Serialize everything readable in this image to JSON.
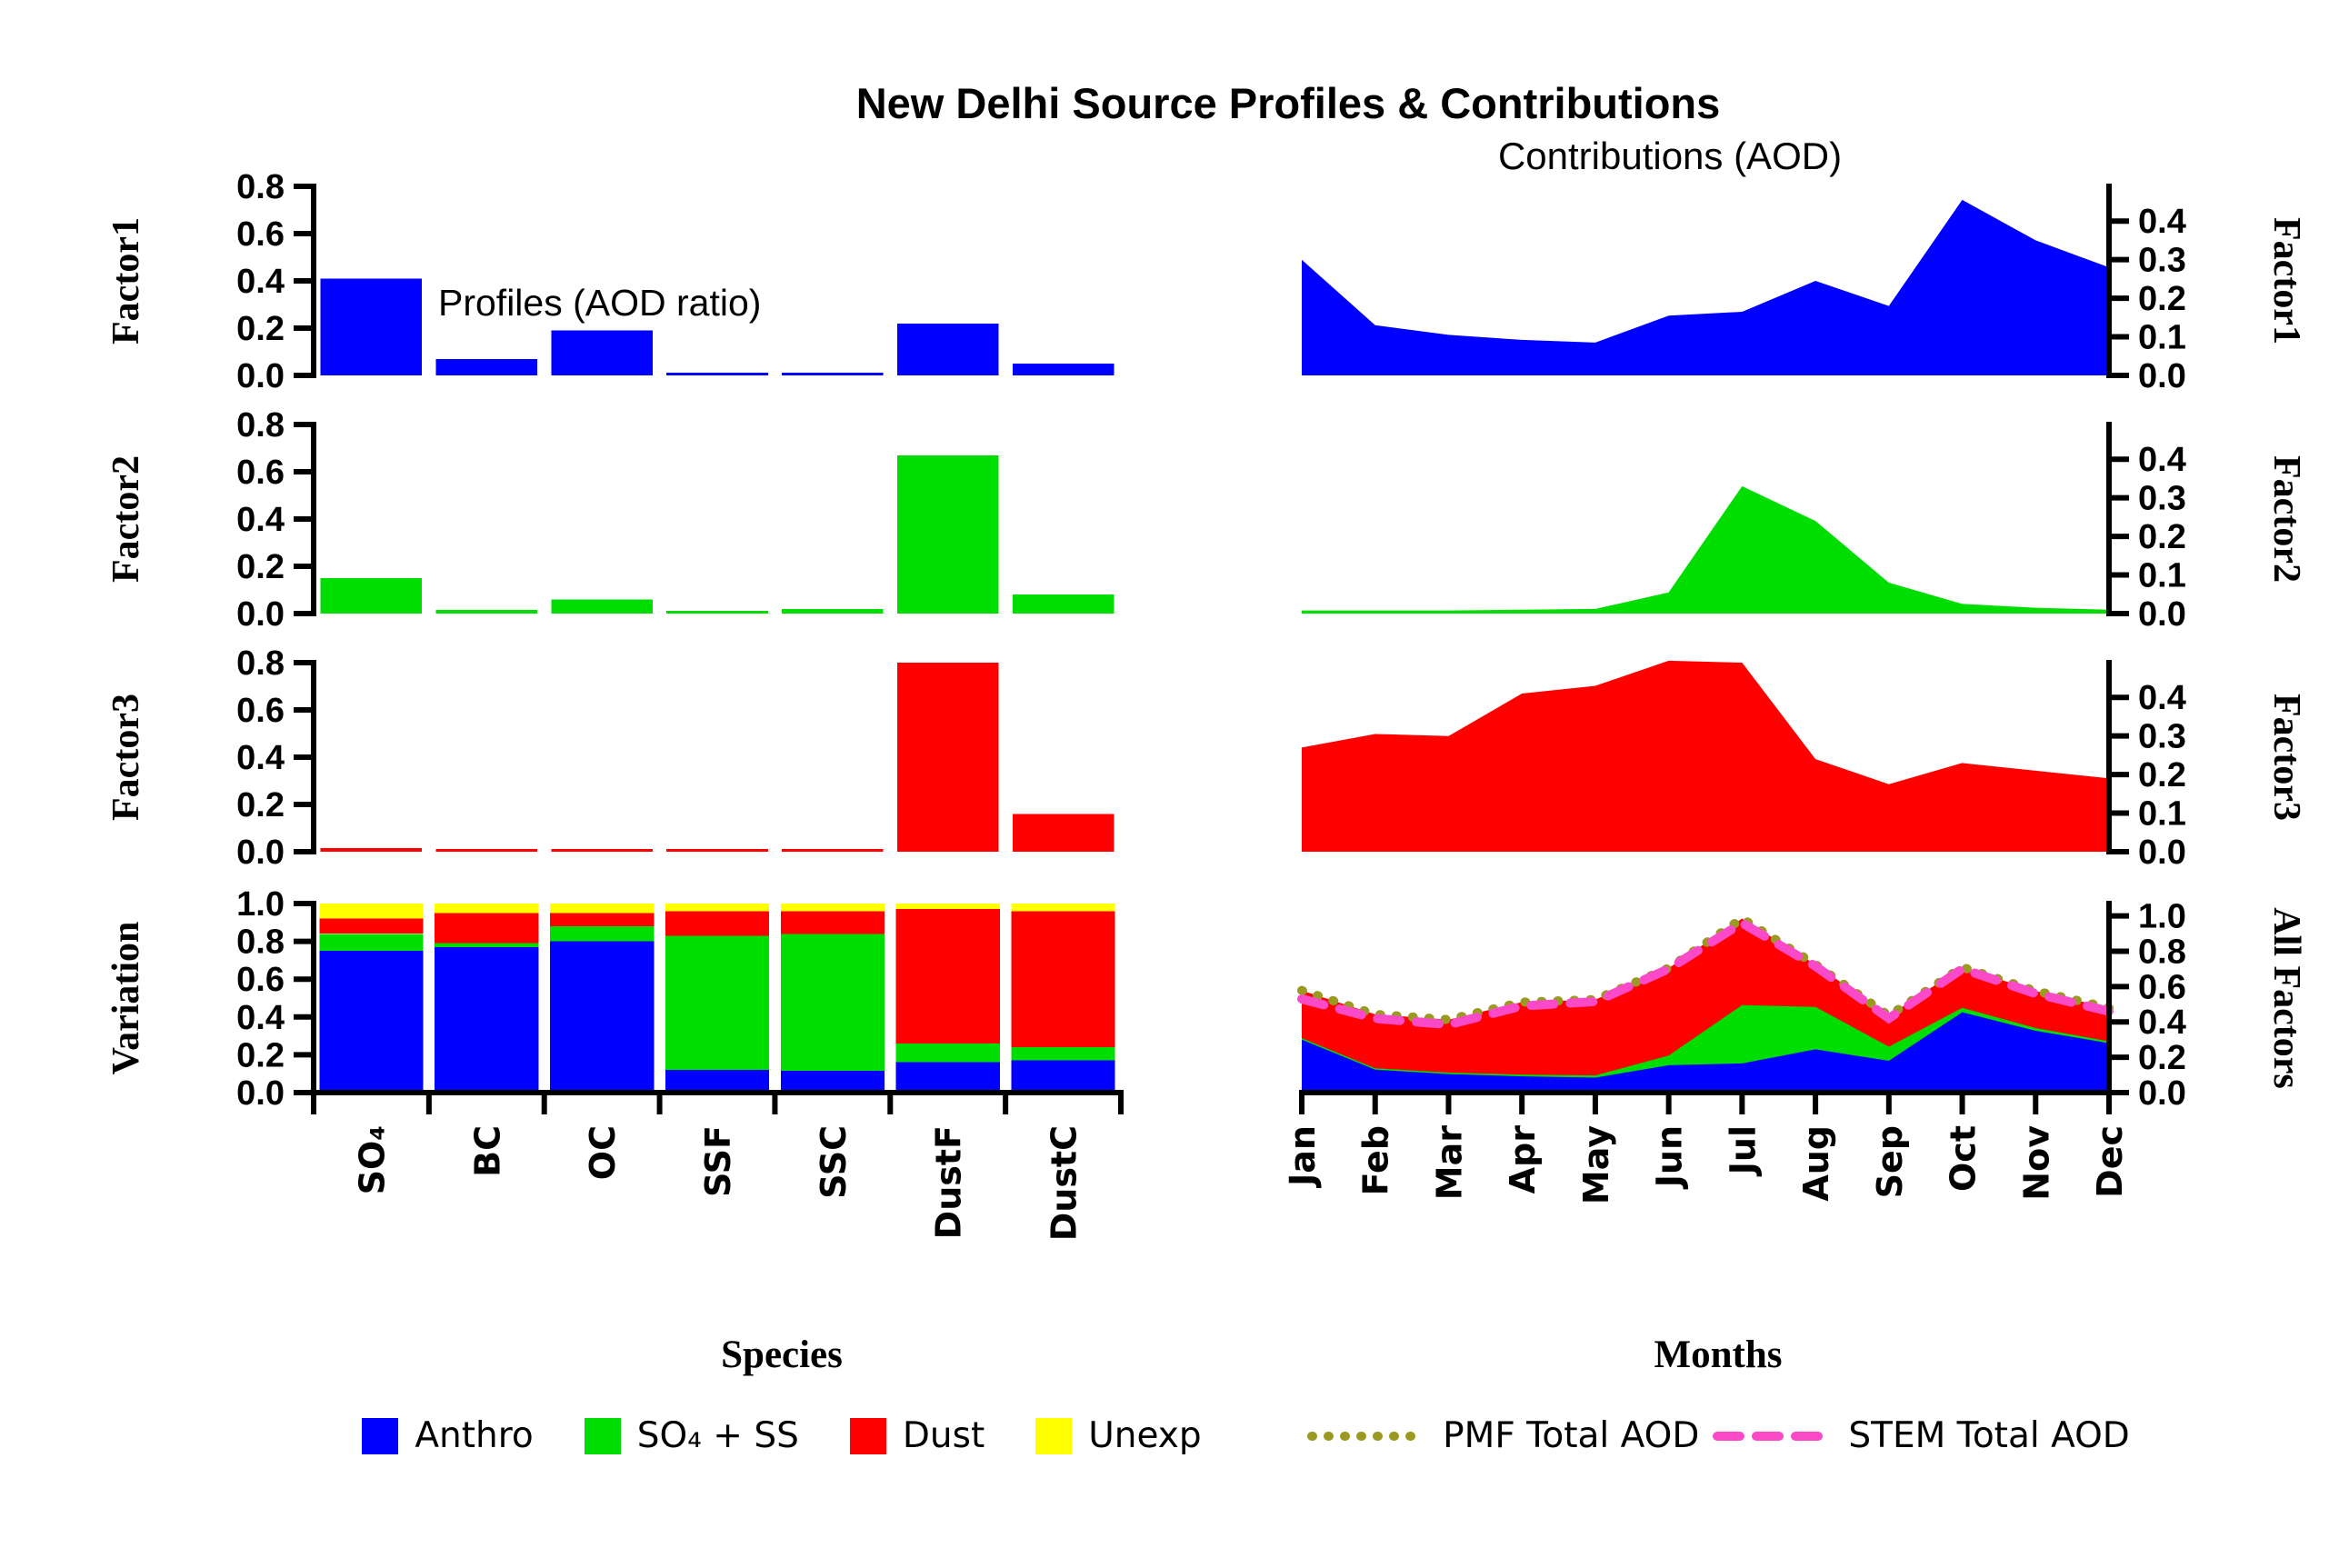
{
  "title": "New Delhi Source Profiles & Contributions",
  "subtitle_right": "Contributions (AOD)",
  "annotation_left": "Profiles (AOD ratio)",
  "species": [
    "SO₄",
    "BC",
    "OC",
    "SSF",
    "SSC",
    "DustF",
    "DustC"
  ],
  "months": [
    "Jan",
    "Feb",
    "Mar",
    "Apr",
    "May",
    "Jun",
    "Jul",
    "Aug",
    "Sep",
    "Oct",
    "Nov",
    "Dec"
  ],
  "colors": {
    "anthro": "#0000FF",
    "so4_ss": "#00DD00",
    "dust": "#FF0000",
    "unexp": "#FFFF00",
    "pmf_total": "#9A9A22",
    "stem_total": "#FA4AC8",
    "axis": "#000000"
  },
  "legends": {
    "species": {
      "title": "Species",
      "items": [
        {
          "label": "Anthro",
          "color": "#0000FF"
        },
        {
          "label": "SO₄ + SS",
          "color": "#00DD00"
        },
        {
          "label": "Dust",
          "color": "#FF0000"
        },
        {
          "label": "Unexp",
          "color": "#FFFF00"
        }
      ]
    },
    "months": {
      "title": "Months",
      "items": [
        {
          "label": "PMF Total AOD",
          "color": "#9A9A22",
          "style": "dotted"
        },
        {
          "label": "STEM Total AOD",
          "color": "#FA4AC8",
          "style": "dashed"
        }
      ]
    }
  },
  "chart_data": [
    {
      "name": "factor1-profile",
      "type": "bar",
      "col": "left",
      "row": 0,
      "axis_side": "left",
      "ylabel": "Factor1",
      "ylim": [
        0,
        0.8
      ],
      "yticks": [
        0,
        0.2,
        0.4,
        0.6,
        0.8
      ],
      "color": "#0000FF",
      "categories": [
        "SO₄",
        "BC",
        "OC",
        "SSF",
        "SSC",
        "DustF",
        "DustC"
      ],
      "values": [
        0.41,
        0.07,
        0.19,
        0.012,
        0.012,
        0.22,
        0.05
      ]
    },
    {
      "name": "factor2-profile",
      "type": "bar",
      "col": "left",
      "row": 1,
      "axis_side": "left",
      "ylabel": "Factor2",
      "ylim": [
        0,
        0.8
      ],
      "yticks": [
        0,
        0.2,
        0.4,
        0.6,
        0.8
      ],
      "color": "#00DD00",
      "categories": [
        "SO₄",
        "BC",
        "OC",
        "SSF",
        "SSC",
        "DustF",
        "DustC"
      ],
      "values": [
        0.15,
        0.015,
        0.06,
        0.012,
        0.02,
        0.67,
        0.08
      ]
    },
    {
      "name": "factor3-profile",
      "type": "bar",
      "col": "left",
      "row": 2,
      "axis_side": "left",
      "ylabel": "Factor3",
      "ylim": [
        0,
        0.8
      ],
      "yticks": [
        0,
        0.2,
        0.4,
        0.6,
        0.8
      ],
      "color": "#FF0000",
      "categories": [
        "SO₄",
        "BC",
        "OC",
        "SSF",
        "SSC",
        "DustF",
        "DustC"
      ],
      "values": [
        0.015,
        0.012,
        0.012,
        0.012,
        0.012,
        0.8,
        0.16
      ]
    },
    {
      "name": "variation",
      "type": "stacked-bar",
      "col": "left",
      "row": 3,
      "axis_side": "left",
      "ylabel": "Variation",
      "ylim": [
        0,
        1.0
      ],
      "yticks": [
        0,
        0.2,
        0.4,
        0.6,
        0.8,
        1.0
      ],
      "bottom_axis": true,
      "categories": [
        "SO₄",
        "BC",
        "OC",
        "SSF",
        "SSC",
        "DustF",
        "DustC"
      ],
      "series": [
        {
          "name": "Anthro",
          "color": "#0000FF",
          "values": [
            0.75,
            0.77,
            0.8,
            0.12,
            0.115,
            0.16,
            0.17
          ]
        },
        {
          "name": "SO₄ + SS",
          "color": "#00DD00",
          "values": [
            0.09,
            0.02,
            0.08,
            0.71,
            0.725,
            0.1,
            0.07
          ]
        },
        {
          "name": "Dust",
          "color": "#FF0000",
          "values": [
            0.08,
            0.16,
            0.07,
            0.13,
            0.12,
            0.71,
            0.72
          ]
        },
        {
          "name": "Unexp",
          "color": "#FFFF00",
          "values": [
            0.08,
            0.05,
            0.05,
            0.04,
            0.04,
            0.03,
            0.04
          ]
        }
      ]
    },
    {
      "name": "factor1-contribution",
      "type": "area",
      "col": "right",
      "row": 0,
      "axis_side": "right",
      "ylabel": "Factor1",
      "ylim": [
        0,
        0.49
      ],
      "yticks": [
        0,
        0.1,
        0.2,
        0.3,
        0.4
      ],
      "color": "#0000FF",
      "categories": [
        "Jan",
        "Feb",
        "Mar",
        "Apr",
        "May",
        "Jun",
        "Jul",
        "Aug",
        "Sep",
        "Oct",
        "Nov",
        "Dec"
      ],
      "values": [
        0.3,
        0.13,
        0.105,
        0.092,
        0.085,
        0.155,
        0.165,
        0.245,
        0.18,
        0.455,
        0.35,
        0.28
      ]
    },
    {
      "name": "factor2-contribution",
      "type": "area",
      "col": "right",
      "row": 1,
      "axis_side": "right",
      "ylabel": "Factor2",
      "ylim": [
        0,
        0.49
      ],
      "yticks": [
        0,
        0.1,
        0.2,
        0.3,
        0.4
      ],
      "color": "#00DD00",
      "categories": [
        "Jan",
        "Feb",
        "Mar",
        "Apr",
        "May",
        "Jun",
        "Jul",
        "Aug",
        "Sep",
        "Oct",
        "Nov",
        "Dec"
      ],
      "values": [
        0.008,
        0.008,
        0.008,
        0.01,
        0.012,
        0.055,
        0.33,
        0.24,
        0.08,
        0.025,
        0.015,
        0.01
      ]
    },
    {
      "name": "factor3-contribution",
      "type": "area",
      "col": "right",
      "row": 2,
      "axis_side": "right",
      "ylabel": "Factor3",
      "ylim": [
        0,
        0.49
      ],
      "yticks": [
        0,
        0.1,
        0.2,
        0.3,
        0.4
      ],
      "color": "#FF0000",
      "categories": [
        "Jan",
        "Feb",
        "Mar",
        "Apr",
        "May",
        "Jun",
        "Jul",
        "Aug",
        "Sep",
        "Oct",
        "Nov",
        "Dec"
      ],
      "values": [
        0.27,
        0.305,
        0.3,
        0.41,
        0.43,
        0.495,
        0.49,
        0.24,
        0.175,
        0.23,
        0.21,
        0.19
      ]
    },
    {
      "name": "all-factors",
      "type": "stacked-area",
      "col": "right",
      "row": 3,
      "axis_side": "right",
      "ylabel": "All Factors",
      "ylim": [
        0,
        1.07
      ],
      "yticks": [
        0,
        0.2,
        0.4,
        0.6,
        0.8,
        1.0
      ],
      "bottom_axis": true,
      "categories": [
        "Jan",
        "Feb",
        "Mar",
        "Apr",
        "May",
        "Jun",
        "Jul",
        "Aug",
        "Sep",
        "Oct",
        "Nov",
        "Dec"
      ],
      "series": [
        {
          "name": "Factor1",
          "color": "#0000FF",
          "values": [
            0.3,
            0.13,
            0.105,
            0.092,
            0.085,
            0.155,
            0.165,
            0.245,
            0.18,
            0.455,
            0.35,
            0.28
          ]
        },
        {
          "name": "Factor2",
          "color": "#00DD00",
          "values": [
            0.008,
            0.008,
            0.008,
            0.01,
            0.012,
            0.055,
            0.33,
            0.24,
            0.08,
            0.025,
            0.015,
            0.01
          ]
        },
        {
          "name": "Factor3",
          "color": "#FF0000",
          "values": [
            0.27,
            0.305,
            0.3,
            0.41,
            0.43,
            0.495,
            0.49,
            0.24,
            0.175,
            0.23,
            0.21,
            0.19
          ]
        }
      ],
      "lines": [
        {
          "name": "PMF Total AOD",
          "color": "#9A9A22",
          "style": "dotted",
          "values": [
            0.578,
            0.443,
            0.413,
            0.512,
            0.527,
            0.705,
            0.985,
            0.725,
            0.435,
            0.71,
            0.575,
            0.48
          ]
        },
        {
          "name": "STEM Total AOD",
          "color": "#FA4AC8",
          "style": "dashed",
          "values": [
            0.53,
            0.42,
            0.385,
            0.49,
            0.515,
            0.7,
            0.96,
            0.715,
            0.42,
            0.7,
            0.56,
            0.46
          ]
        }
      ]
    }
  ]
}
